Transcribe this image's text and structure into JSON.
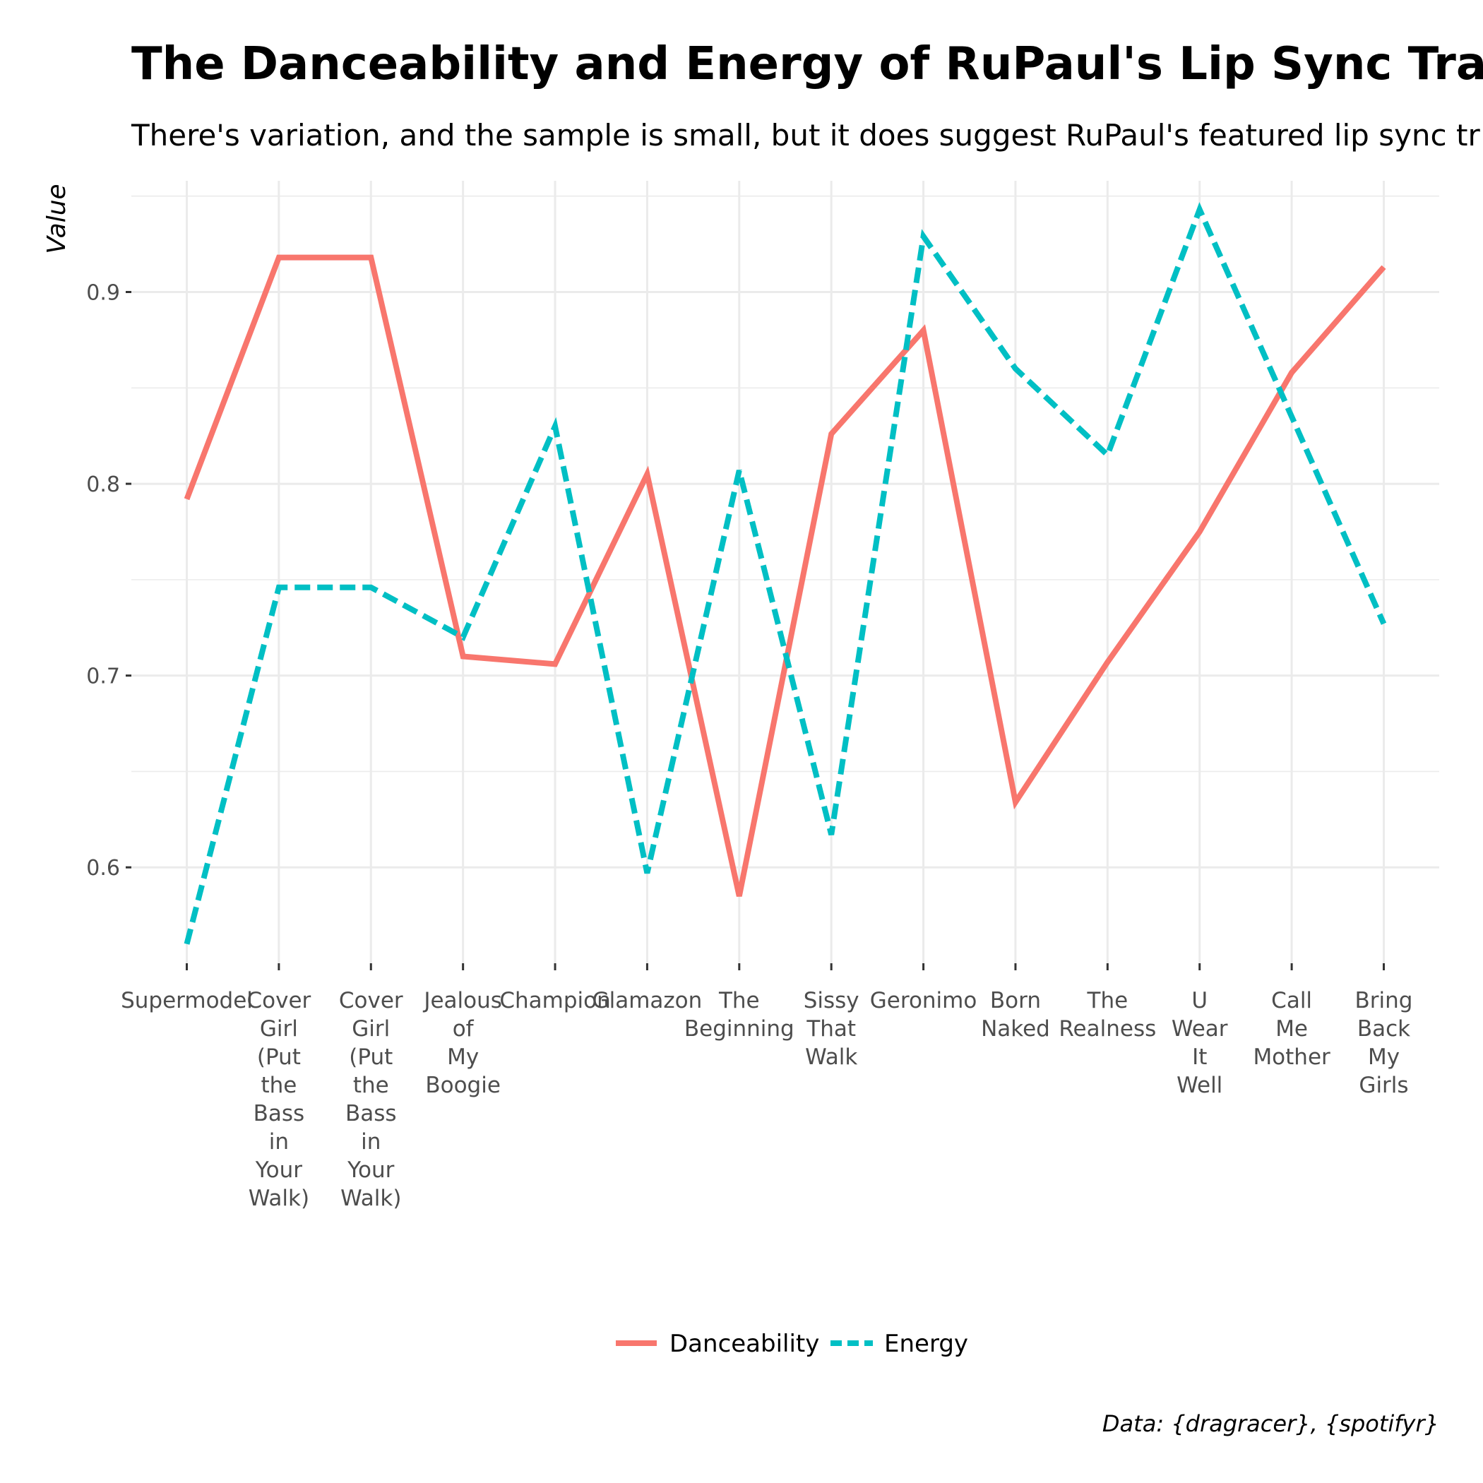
{
  "chart_data": {
    "type": "line",
    "title": "The Danceability and Energy of RuPaul's Lip Sync Tracks",
    "subtitle": "There's variation, and the sample is small, but it does suggest RuPaul's featured lip sync tr",
    "xlabel": "",
    "ylabel": "Value",
    "categories": [
      "Supermodel",
      "Cover Girl (Put the Bass in Your Walk)",
      "Cover Girl (Put the Bass in Your Walk)",
      "Jealous of My Boogie",
      "Champion",
      "Glamazon",
      "The Beginning",
      "Sissy That Walk",
      "Geronimo",
      "Born Naked",
      "The Realness",
      "U Wear It Well",
      "Call Me Mother",
      "Bring Back My Girls"
    ],
    "series": [
      {
        "name": "Danceability",
        "color": "#F8766D",
        "dash": "solid",
        "values": [
          0.792,
          0.918,
          0.918,
          0.71,
          0.706,
          0.805,
          0.585,
          0.826,
          0.88,
          0.634,
          0.707,
          0.775,
          0.858,
          0.913
        ]
      },
      {
        "name": "Energy",
        "color": "#00BFC4",
        "dash": "dashed",
        "values": [
          0.56,
          0.746,
          0.746,
          0.72,
          0.83,
          0.597,
          0.807,
          0.617,
          0.929,
          0.86,
          0.815,
          0.943,
          0.835,
          0.727
        ]
      }
    ],
    "ylim": [
      0.55,
      0.958
    ],
    "yticks": [
      0.6,
      0.7,
      0.8,
      0.9
    ],
    "ytick_labels": [
      "0.6",
      "0.7",
      "0.8",
      "0.9"
    ],
    "grid": true,
    "legend_position": "bottom",
    "caption": "Data: {dragracer}, {spotifyr}"
  }
}
